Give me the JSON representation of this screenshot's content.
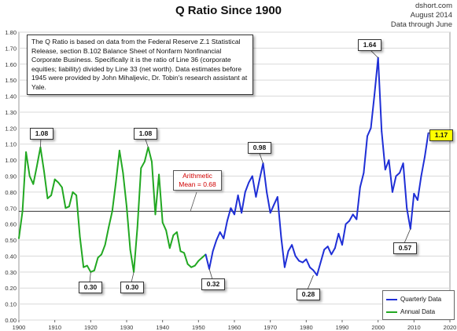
{
  "title": "Q Ratio Since 1900",
  "source": {
    "line1": "dshort.com",
    "line2": "August 2014",
    "line3": "Data through June"
  },
  "note": "The Q Ratio is based on data from the Federal Reserve Z.1 Statistical Release, section B.102 Balance Sheet of Nonfarm Nonfinancial Corporate Business. Specifically it is the ratio of Line 36 (corporate equities; liability) divided by Line 33 (net worth).  Data estimates before 1945 were provided by John Mihaljevic, Dr. Tobin's research assistant at Yale.",
  "mean_label": {
    "line1": "Arithmetic",
    "line2": "Mean = 0.68"
  },
  "callouts": [
    {
      "text": "1.08"
    },
    {
      "text": "0.30"
    },
    {
      "text": "0.30"
    },
    {
      "text": "1.08"
    },
    {
      "text": "0.32"
    },
    {
      "text": "0.98"
    },
    {
      "text": "0.28"
    },
    {
      "text": "1.64"
    },
    {
      "text": "0.57"
    },
    {
      "text": "1.17"
    }
  ],
  "legend": {
    "quarterly": "Quarterly Data",
    "annual": "Annual Data"
  },
  "colors": {
    "annual": "#22a822",
    "quarterly": "#1f2fd6",
    "mean_line": "#333333",
    "highlight": "#ffff00",
    "mean_text": "#d00000"
  },
  "chart_data": {
    "type": "line",
    "title": "Q Ratio Since 1900",
    "xlabel": "",
    "ylabel": "",
    "xlim": [
      1900,
      2020
    ],
    "ylim": [
      0,
      1.8
    ],
    "xticks": [
      1900,
      1910,
      1920,
      1930,
      1940,
      1950,
      1960,
      1970,
      1980,
      1990,
      2000,
      2010,
      2020
    ],
    "yticks": [
      0.0,
      0.1,
      0.2,
      0.3,
      0.4,
      0.5,
      0.6,
      0.7,
      0.8,
      0.9,
      1.0,
      1.1,
      1.2,
      1.3,
      1.4,
      1.5,
      1.6,
      1.7,
      1.8
    ],
    "grid": "horizontal",
    "legend_position": "bottom-right",
    "mean": 0.68,
    "series": [
      {
        "name": "Annual Data",
        "x": [
          1900,
          1901,
          1902,
          1903,
          1904,
          1905,
          1906,
          1907,
          1908,
          1909,
          1910,
          1911,
          1912,
          1913,
          1914,
          1915,
          1916,
          1917,
          1918,
          1919,
          1920,
          1921,
          1922,
          1923,
          1924,
          1925,
          1926,
          1927,
          1928,
          1929,
          1930,
          1931,
          1932,
          1933,
          1934,
          1935,
          1936,
          1937,
          1938,
          1939,
          1940,
          1941,
          1942,
          1943,
          1944,
          1945,
          1946,
          1947,
          1948,
          1949,
          1950,
          1951,
          1952
        ],
        "values": [
          0.51,
          0.68,
          1.05,
          0.9,
          0.85,
          0.96,
          1.08,
          0.93,
          0.76,
          0.78,
          0.88,
          0.86,
          0.83,
          0.7,
          0.71,
          0.8,
          0.78,
          0.52,
          0.33,
          0.34,
          0.3,
          0.31,
          0.39,
          0.41,
          0.47,
          0.58,
          0.68,
          0.86,
          1.06,
          0.92,
          0.71,
          0.44,
          0.3,
          0.58,
          0.95,
          0.99,
          1.08,
          0.99,
          0.66,
          0.91,
          0.61,
          0.56,
          0.45,
          0.53,
          0.55,
          0.43,
          0.42,
          0.35,
          0.33,
          0.34,
          0.37,
          0.39,
          0.41
        ]
      },
      {
        "name": "Quarterly Data",
        "x": [
          1952,
          1953,
          1954,
          1955,
          1956,
          1957,
          1958,
          1959,
          1960,
          1961,
          1962,
          1963,
          1964,
          1965,
          1966,
          1967,
          1968,
          1969,
          1970,
          1971,
          1972,
          1973,
          1974,
          1975,
          1976,
          1977,
          1978,
          1979,
          1980,
          1981,
          1982,
          1983,
          1984,
          1985,
          1986,
          1987,
          1988,
          1989,
          1990,
          1991,
          1992,
          1993,
          1994,
          1995,
          1996,
          1997,
          1998,
          1999,
          2000,
          2001,
          2002,
          2003,
          2004,
          2005,
          2006,
          2007,
          2008,
          2009,
          2010,
          2011,
          2012,
          2013,
          2014
        ],
        "values": [
          0.41,
          0.32,
          0.43,
          0.5,
          0.55,
          0.51,
          0.62,
          0.7,
          0.66,
          0.78,
          0.67,
          0.8,
          0.86,
          0.9,
          0.77,
          0.88,
          0.98,
          0.8,
          0.67,
          0.72,
          0.77,
          0.52,
          0.33,
          0.43,
          0.47,
          0.4,
          0.37,
          0.36,
          0.38,
          0.33,
          0.31,
          0.28,
          0.36,
          0.44,
          0.46,
          0.41,
          0.45,
          0.54,
          0.47,
          0.6,
          0.62,
          0.66,
          0.63,
          0.83,
          0.92,
          1.15,
          1.2,
          1.41,
          1.64,
          1.18,
          0.94,
          1.0,
          0.8,
          0.9,
          0.92,
          0.98,
          0.7,
          0.57,
          0.79,
          0.75,
          0.9,
          1.02,
          1.17
        ]
      }
    ],
    "annotations": [
      {
        "x": 1906,
        "y": 1.08,
        "label": "1.08"
      },
      {
        "x": 1920,
        "y": 0.3,
        "label": "0.30"
      },
      {
        "x": 1932,
        "y": 0.3,
        "label": "0.30"
      },
      {
        "x": 1936,
        "y": 1.08,
        "label": "1.08"
      },
      {
        "x": 1953,
        "y": 0.32,
        "label": "0.32"
      },
      {
        "x": 1968,
        "y": 0.98,
        "label": "0.98"
      },
      {
        "x": 1982,
        "y": 0.28,
        "label": "0.28"
      },
      {
        "x": 2000,
        "y": 1.64,
        "label": "1.64"
      },
      {
        "x": 2009,
        "y": 0.57,
        "label": "0.57"
      },
      {
        "x": 2014,
        "y": 1.17,
        "label": "1.17"
      }
    ]
  }
}
